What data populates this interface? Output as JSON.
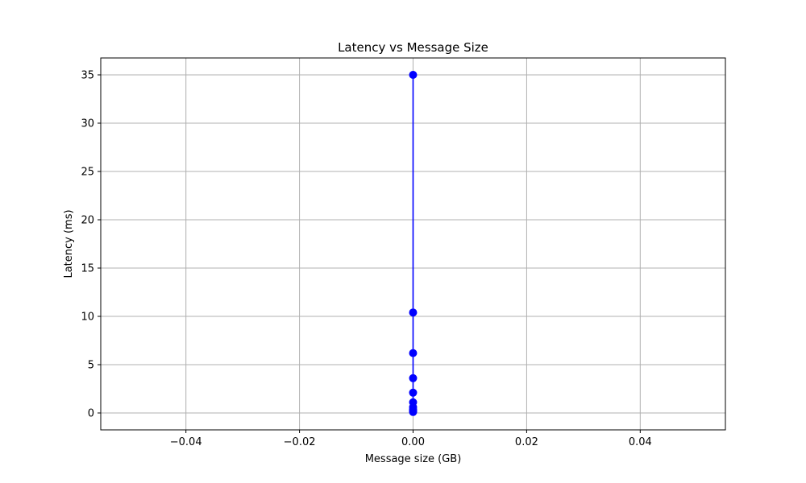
{
  "chart_data": {
    "type": "line",
    "title": "Latency vs Message Size",
    "xlabel": "Message size (GB)",
    "ylabel": "Latency (ms)",
    "xlim": [
      -0.055,
      0.055
    ],
    "ylim": [
      -1.75,
      36.75
    ],
    "xticks": [
      -0.04,
      -0.02,
      0.0,
      0.02,
      0.04
    ],
    "xtick_labels": [
      "−0.04",
      "−0.02",
      "0.00",
      "0.02",
      "0.04"
    ],
    "yticks": [
      0,
      5,
      10,
      15,
      20,
      25,
      30,
      35
    ],
    "ytick_labels": [
      "0",
      "5",
      "10",
      "15",
      "20",
      "25",
      "30",
      "35"
    ],
    "grid": true,
    "series": [
      {
        "color": "#0000ff",
        "marker": "circle",
        "x": [
          0,
          0,
          0,
          0,
          0,
          0,
          0,
          0,
          0,
          0,
          0
        ],
        "y": [
          0.1,
          0.15,
          0.25,
          0.4,
          0.6,
          1.1,
          2.1,
          3.6,
          6.2,
          10.4,
          35.0
        ]
      }
    ]
  }
}
